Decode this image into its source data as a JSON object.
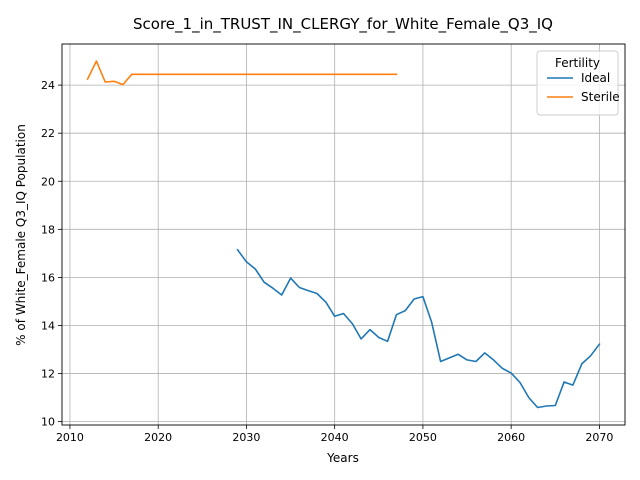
{
  "chart_data": {
    "type": "line",
    "title": "Score_1_in_TRUST_IN_CLERGY_for_White_Female_Q3_IQ",
    "xlabel": "Years",
    "ylabel": "% of White_Female Q3_IQ Population",
    "xlim": [
      2009.1,
      2072.9
    ],
    "ylim": [
      9.86,
      25.71
    ],
    "xticks": [
      2010,
      2020,
      2030,
      2040,
      2050,
      2060,
      2070
    ],
    "yticks": [
      10,
      12,
      14,
      16,
      18,
      20,
      22,
      24
    ],
    "grid": true,
    "legend": {
      "title": "Fertility",
      "position": "top-right"
    },
    "series": [
      {
        "name": "Ideal",
        "color": "#1f77b4",
        "x": [
          2029,
          2030,
          2031,
          2032,
          2033,
          2034,
          2035,
          2036,
          2037,
          2038,
          2039,
          2040,
          2041,
          2042,
          2043,
          2044,
          2045,
          2046,
          2047,
          2048,
          2049,
          2050,
          2051,
          2052,
          2053,
          2054,
          2055,
          2056,
          2057,
          2058,
          2059,
          2060,
          2061,
          2062,
          2063,
          2064,
          2065,
          2066,
          2067,
          2068,
          2069,
          2070
        ],
        "y": [
          17.15,
          16.65,
          16.35,
          15.8,
          15.55,
          15.27,
          15.97,
          15.58,
          15.45,
          15.33,
          14.97,
          14.38,
          14.5,
          14.08,
          13.44,
          13.83,
          13.5,
          13.34,
          14.45,
          14.62,
          15.1,
          15.2,
          14.13,
          12.5,
          12.65,
          12.8,
          12.57,
          12.5,
          12.86,
          12.57,
          12.22,
          12.02,
          11.63,
          11.0,
          10.59,
          10.65,
          10.67,
          11.65,
          11.52,
          12.4,
          12.74,
          13.22
        ]
      },
      {
        "name": "Sterile",
        "color": "#ff7f0e",
        "x": [
          2012,
          2013,
          2014,
          2015,
          2016,
          2017,
          2018,
          2019,
          2020,
          2021,
          2022,
          2023,
          2024,
          2025,
          2026,
          2027,
          2028,
          2029,
          2030,
          2031,
          2032,
          2033,
          2034,
          2035,
          2036,
          2037,
          2038,
          2039,
          2040,
          2041,
          2042,
          2043,
          2044,
          2045,
          2046,
          2047
        ],
        "y": [
          24.25,
          25.0,
          24.13,
          24.16,
          24.02,
          24.45,
          24.45,
          24.45,
          24.45,
          24.45,
          24.45,
          24.45,
          24.45,
          24.45,
          24.45,
          24.45,
          24.45,
          24.45,
          24.45,
          24.45,
          24.45,
          24.45,
          24.45,
          24.45,
          24.45,
          24.45,
          24.45,
          24.45,
          24.45,
          24.45,
          24.45,
          24.45,
          24.45,
          24.45,
          24.45,
          24.45
        ]
      }
    ]
  }
}
